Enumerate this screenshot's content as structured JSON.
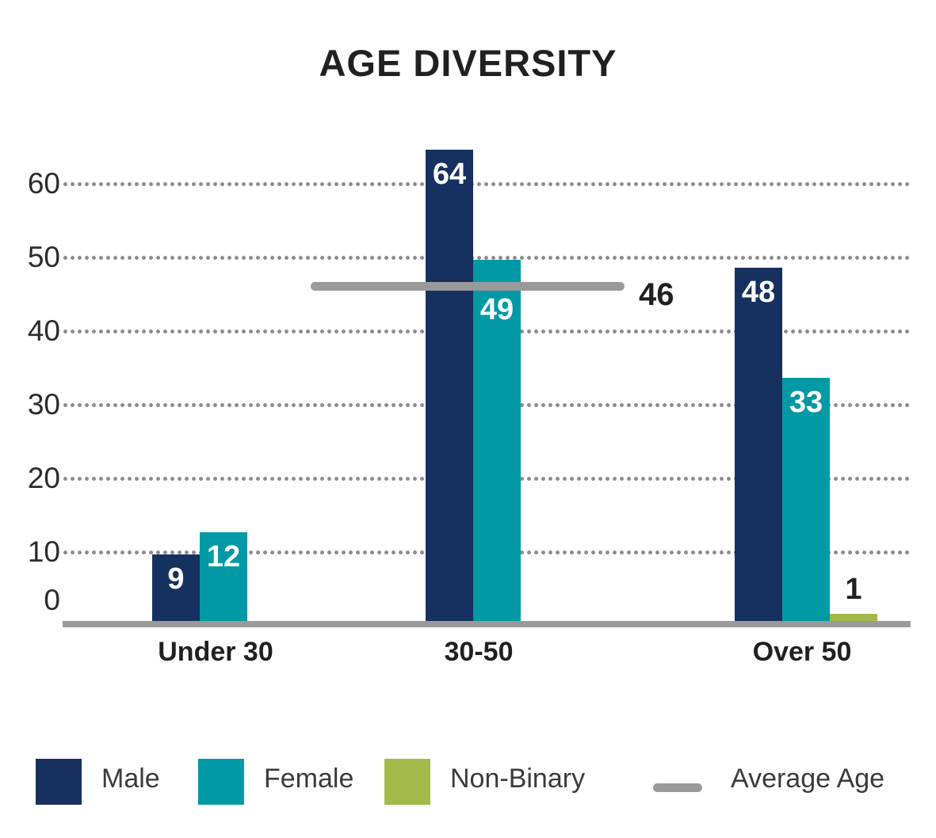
{
  "title": "AGE DIVERSITY",
  "chart_data": {
    "type": "bar",
    "title": "AGE DIVERSITY",
    "categories": [
      "Under 30",
      "30-50",
      "Over 50"
    ],
    "series": [
      {
        "name": "Male",
        "color": "#16305f",
        "values": [
          9,
          64,
          48
        ]
      },
      {
        "name": "Female",
        "color": "#0099a5",
        "values": [
          12,
          49,
          33
        ]
      },
      {
        "name": "Non-Binary",
        "color": "#a3ba4a",
        "values": [
          null,
          null,
          1
        ]
      }
    ],
    "average_line": {
      "name": "Average Age",
      "value": 46,
      "display_value": "46",
      "color": "#9a9a9a"
    },
    "y_ticks": [
      0,
      10,
      20,
      30,
      40,
      50,
      60
    ],
    "ylim": [
      0,
      67
    ],
    "grid": "dotted-horizontal",
    "legend_position": "bottom",
    "colors": {
      "text_dark": "#231f20",
      "axis_text": "#2b2b2b",
      "grid_dots": "#8c8c8c",
      "baseline": "#9a9a9a",
      "bar_label_light": "#ffffff"
    }
  },
  "legend": {
    "items": [
      {
        "label": "Male",
        "swatch_color": "#16305f",
        "type": "square"
      },
      {
        "label": "Female",
        "swatch_color": "#0099a5",
        "type": "square"
      },
      {
        "label": "Non-Binary",
        "swatch_color": "#a3ba4a",
        "type": "square"
      },
      {
        "label": "Average Age",
        "swatch_color": "#9a9a9a",
        "type": "line"
      }
    ]
  }
}
